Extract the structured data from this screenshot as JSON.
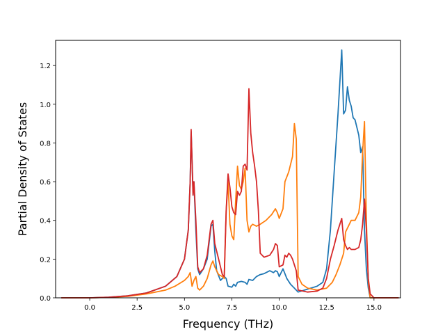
{
  "chart_data": {
    "type": "line",
    "title": "",
    "xlabel": "Frequency (THz)",
    "ylabel": "Partial Density of States",
    "xlim": [
      -1.8,
      16.4
    ],
    "ylim": [
      0.0,
      1.33
    ],
    "grid": false,
    "legend": "none",
    "xticks": [
      0.0,
      2.5,
      5.0,
      7.5,
      10.0,
      12.5,
      15.0
    ],
    "xtick_labels": [
      "0.0",
      "2.5",
      "5.0",
      "7.5",
      "10.0",
      "12.5",
      "15.0"
    ],
    "yticks": [
      0.0,
      0.2,
      0.4,
      0.6,
      0.8,
      1.0,
      1.2
    ],
    "ytick_labels": [
      "0.0",
      "0.2",
      "0.4",
      "0.6",
      "0.8",
      "1.0",
      "1.2"
    ],
    "series": [
      {
        "color": "#1f77b4",
        "x": [
          -1.5,
          0.0,
          1.0,
          2.0,
          3.0,
          4.0,
          4.6,
          5.0,
          5.2,
          5.3,
          5.35,
          5.45,
          5.5,
          5.6,
          5.7,
          5.8,
          6.0,
          6.2,
          6.4,
          6.5,
          6.6,
          6.7,
          6.9,
          7.1,
          7.2,
          7.3,
          7.5,
          7.6,
          7.7,
          7.8,
          8.0,
          8.2,
          8.3,
          8.4,
          8.6,
          8.8,
          9.0,
          9.2,
          9.5,
          9.7,
          9.8,
          9.9,
          10.0,
          10.2,
          10.4,
          10.6,
          10.8,
          11.0,
          11.5,
          12.0,
          12.3,
          12.5,
          12.7,
          12.9,
          13.1,
          13.3,
          13.4,
          13.5,
          13.6,
          13.7,
          13.8,
          13.9,
          14.0,
          14.1,
          14.2,
          14.3,
          14.4,
          14.5,
          14.6,
          14.7,
          14.8,
          15.0,
          16.3
        ],
        "y": [
          0.0,
          0.0,
          0.003,
          0.01,
          0.025,
          0.06,
          0.11,
          0.2,
          0.35,
          0.6,
          0.86,
          0.55,
          0.6,
          0.35,
          0.15,
          0.12,
          0.15,
          0.2,
          0.37,
          0.38,
          0.24,
          0.14,
          0.09,
          0.11,
          0.1,
          0.06,
          0.055,
          0.07,
          0.06,
          0.08,
          0.085,
          0.08,
          0.07,
          0.095,
          0.09,
          0.11,
          0.12,
          0.125,
          0.14,
          0.13,
          0.14,
          0.135,
          0.11,
          0.15,
          0.1,
          0.07,
          0.05,
          0.03,
          0.045,
          0.06,
          0.08,
          0.15,
          0.35,
          0.65,
          0.95,
          1.28,
          0.95,
          0.97,
          1.09,
          1.02,
          0.99,
          0.93,
          0.92,
          0.88,
          0.84,
          0.75,
          0.78,
          0.35,
          0.15,
          0.05,
          0.0,
          0.0,
          0.0
        ]
      },
      {
        "color": "#ff7f0e",
        "x": [
          -1.5,
          0.0,
          1.0,
          2.0,
          3.0,
          4.0,
          4.5,
          5.0,
          5.2,
          5.3,
          5.4,
          5.5,
          5.6,
          5.7,
          5.8,
          6.0,
          6.2,
          6.4,
          6.5,
          6.6,
          6.8,
          7.0,
          7.1,
          7.2,
          7.3,
          7.4,
          7.5,
          7.6,
          7.7,
          7.8,
          7.9,
          8.0,
          8.1,
          8.2,
          8.3,
          8.4,
          8.5,
          8.6,
          8.8,
          9.0,
          9.3,
          9.6,
          9.8,
          9.9,
          10.0,
          10.2,
          10.3,
          10.5,
          10.7,
          10.8,
          10.9,
          11.0,
          11.2,
          11.5,
          12.0,
          12.5,
          12.8,
          13.0,
          13.2,
          13.4,
          13.5,
          13.6,
          13.7,
          13.8,
          14.0,
          14.2,
          14.3,
          14.4,
          14.5,
          14.6,
          14.7,
          14.8,
          15.0,
          16.3
        ],
        "y": [
          0.0,
          0.0,
          0.002,
          0.008,
          0.02,
          0.04,
          0.06,
          0.09,
          0.11,
          0.13,
          0.06,
          0.09,
          0.11,
          0.05,
          0.04,
          0.06,
          0.1,
          0.17,
          0.19,
          0.16,
          0.12,
          0.11,
          0.1,
          0.45,
          0.6,
          0.38,
          0.32,
          0.3,
          0.5,
          0.68,
          0.58,
          0.56,
          0.6,
          0.67,
          0.4,
          0.34,
          0.37,
          0.38,
          0.37,
          0.38,
          0.4,
          0.43,
          0.46,
          0.44,
          0.41,
          0.46,
          0.6,
          0.65,
          0.73,
          0.9,
          0.82,
          0.11,
          0.07,
          0.05,
          0.04,
          0.05,
          0.08,
          0.12,
          0.17,
          0.23,
          0.34,
          0.36,
          0.38,
          0.4,
          0.4,
          0.44,
          0.52,
          0.75,
          0.91,
          0.4,
          0.08,
          0.0,
          0.0,
          0.0
        ]
      },
      {
        "color": "#d62728",
        "x": [
          -1.5,
          0.0,
          1.0,
          2.0,
          3.0,
          4.0,
          4.6,
          5.0,
          5.2,
          5.3,
          5.35,
          5.45,
          5.5,
          5.6,
          5.7,
          5.8,
          6.0,
          6.2,
          6.4,
          6.5,
          6.6,
          6.8,
          7.0,
          7.1,
          7.2,
          7.3,
          7.4,
          7.5,
          7.6,
          7.7,
          7.8,
          7.9,
          8.0,
          8.1,
          8.2,
          8.3,
          8.4,
          8.5,
          8.6,
          8.7,
          8.8,
          8.9,
          9.0,
          9.2,
          9.5,
          9.7,
          9.8,
          9.9,
          10.0,
          10.2,
          10.3,
          10.4,
          10.5,
          10.6,
          10.7,
          10.8,
          10.9,
          11.0,
          11.5,
          12.0,
          12.3,
          12.5,
          12.7,
          12.9,
          13.1,
          13.2,
          13.3,
          13.4,
          13.5,
          13.6,
          13.7,
          13.8,
          14.0,
          14.2,
          14.3,
          14.4,
          14.5,
          14.6,
          14.7,
          14.8,
          15.0,
          16.3
        ],
        "y": [
          0.0,
          0.0,
          0.003,
          0.01,
          0.025,
          0.06,
          0.11,
          0.2,
          0.35,
          0.6,
          0.87,
          0.53,
          0.6,
          0.4,
          0.16,
          0.13,
          0.15,
          0.22,
          0.38,
          0.4,
          0.28,
          0.2,
          0.12,
          0.11,
          0.45,
          0.64,
          0.57,
          0.47,
          0.44,
          0.43,
          0.55,
          0.53,
          0.55,
          0.68,
          0.69,
          0.66,
          1.08,
          0.85,
          0.75,
          0.68,
          0.6,
          0.45,
          0.23,
          0.21,
          0.22,
          0.25,
          0.28,
          0.27,
          0.16,
          0.17,
          0.22,
          0.21,
          0.23,
          0.22,
          0.2,
          0.17,
          0.14,
          0.04,
          0.03,
          0.035,
          0.05,
          0.1,
          0.2,
          0.27,
          0.35,
          0.38,
          0.41,
          0.3,
          0.27,
          0.25,
          0.26,
          0.25,
          0.25,
          0.26,
          0.3,
          0.38,
          0.51,
          0.35,
          0.1,
          0.02,
          0.0,
          0.0
        ]
      }
    ]
  }
}
